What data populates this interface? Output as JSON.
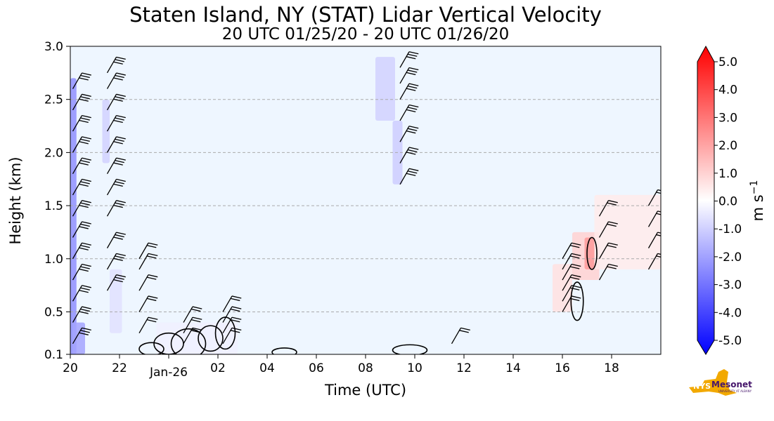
{
  "chart_data": {
    "type": "heatmap",
    "title": "Staten Island, NY (STAT) Lidar Vertical Velocity",
    "subtitle": "20 UTC 01/25/20 - 20 UTC 01/26/20",
    "xlabel": "Time (UTC)",
    "ylabel": "Height (km)",
    "x_ticks": [
      "20",
      "22",
      "02",
      "04",
      "06",
      "08",
      "10",
      "12",
      "14",
      "16",
      "18"
    ],
    "x_date_label": "Jan-26",
    "xlim": [
      20,
      44
    ],
    "y_ticks": [
      0.1,
      0.5,
      1.0,
      1.5,
      2.0,
      2.5,
      3.0
    ],
    "ylim": [
      0.1,
      3.0
    ],
    "grid": "horizontal dashed",
    "colorbar": {
      "label": "m s",
      "label_sup": "−1",
      "ticks": [
        "5.0",
        "4.0",
        "3.0",
        "2.0",
        "1.0",
        "0.0",
        "-1.0",
        "-2.0",
        "-3.0",
        "-4.0",
        "-5.0"
      ],
      "range": [
        -5.0,
        5.0
      ],
      "colormap": [
        "#0000ff",
        "#ffffff",
        "#ff0000"
      ]
    },
    "background_color": "#eef6ff",
    "regions": [
      {
        "t0": 20.0,
        "t1": 20.25,
        "h0": 0.1,
        "h1": 2.7,
        "v": -2.2
      },
      {
        "t0": 20.1,
        "t1": 20.6,
        "h0": 0.1,
        "h1": 0.4,
        "v": -1.8
      },
      {
        "t0": 21.3,
        "t1": 21.6,
        "h0": 1.9,
        "h1": 2.5,
        "v": -0.9
      },
      {
        "t0": 21.6,
        "t1": 22.1,
        "h0": 0.3,
        "h1": 0.9,
        "v": -0.6
      },
      {
        "t0": 23.5,
        "t1": 26.8,
        "h0": 0.1,
        "h1": 0.4,
        "v": -0.3
      },
      {
        "t0": 32.4,
        "t1": 33.2,
        "h0": 2.3,
        "h1": 2.9,
        "v": -0.9
      },
      {
        "t0": 33.1,
        "t1": 33.5,
        "h0": 1.7,
        "h1": 2.3,
        "v": -1.0
      },
      {
        "t0": 39.6,
        "t1": 40.4,
        "h0": 0.5,
        "h1": 0.95,
        "v": 0.6
      },
      {
        "t0": 40.4,
        "t1": 41.5,
        "h0": 0.8,
        "h1": 1.25,
        "v": 0.9
      },
      {
        "t0": 40.9,
        "t1": 41.3,
        "h0": 0.9,
        "h1": 1.2,
        "v": 2.0
      },
      {
        "t0": 41.3,
        "t1": 44.0,
        "h0": 0.9,
        "h1": 1.6,
        "v": 0.4
      }
    ],
    "wind_barb_columns": [
      {
        "t": 20.1,
        "heights": [
          0.2,
          0.4,
          0.6,
          0.8,
          1.0,
          1.2,
          1.4,
          1.6,
          1.8,
          2.0,
          2.2,
          2.4,
          2.6
        ],
        "barbs": 3
      },
      {
        "t": 21.5,
        "heights": [
          0.7,
          0.9,
          1.1,
          1.4,
          1.6,
          1.8,
          2.0,
          2.2,
          2.4,
          2.6,
          2.75
        ],
        "barbs": 3
      },
      {
        "t": 22.8,
        "heights": [
          0.3,
          0.5,
          0.7,
          0.9,
          1.0
        ],
        "barbs": 2
      },
      {
        "t": 24.6,
        "heights": [
          0.2,
          0.3,
          0.4
        ],
        "barbs": 2
      },
      {
        "t": 26.2,
        "heights": [
          0.2,
          0.3,
          0.4,
          0.5
        ],
        "barbs": 2
      },
      {
        "t": 33.4,
        "heights": [
          1.7,
          1.9,
          2.1,
          2.3,
          2.5,
          2.65,
          2.8,
          3.0
        ],
        "barbs": 3
      },
      {
        "t": 35.5,
        "heights": [
          0.2
        ],
        "barbs": 2
      },
      {
        "t": 40.0,
        "heights": [
          0.5,
          0.6,
          0.7,
          0.8,
          0.9,
          1.0
        ],
        "barbs": 2
      },
      {
        "t": 41.5,
        "heights": [
          0.8,
          1.0,
          1.2,
          1.4
        ],
        "barbs": 2
      },
      {
        "t": 43.5,
        "heights": [
          0.9,
          1.1,
          1.3,
          1.5
        ],
        "barbs": 2
      }
    ],
    "contours": [
      {
        "tc": 23.3,
        "hc": 0.15,
        "rt": 0.5,
        "rh": 0.06
      },
      {
        "tc": 24.0,
        "hc": 0.2,
        "rt": 0.6,
        "rh": 0.1
      },
      {
        "tc": 24.8,
        "hc": 0.2,
        "rt": 0.7,
        "rh": 0.14
      },
      {
        "tc": 25.7,
        "hc": 0.25,
        "rt": 0.5,
        "rh": 0.12
      },
      {
        "tc": 26.3,
        "hc": 0.3,
        "rt": 0.4,
        "rh": 0.15
      },
      {
        "tc": 28.7,
        "hc": 0.12,
        "rt": 0.5,
        "rh": 0.04
      },
      {
        "tc": 33.8,
        "hc": 0.14,
        "rt": 0.7,
        "rh": 0.05
      },
      {
        "tc": 40.6,
        "hc": 0.6,
        "rt": 0.25,
        "rh": 0.18
      },
      {
        "tc": 41.2,
        "hc": 1.05,
        "rt": 0.2,
        "rh": 0.15
      }
    ]
  },
  "logo": {
    "text": "NYS Mesonet",
    "subtext": "UNIVERSITY AT ALBANY",
    "color_gold": "#f2a900",
    "color_purple": "#46166b"
  }
}
